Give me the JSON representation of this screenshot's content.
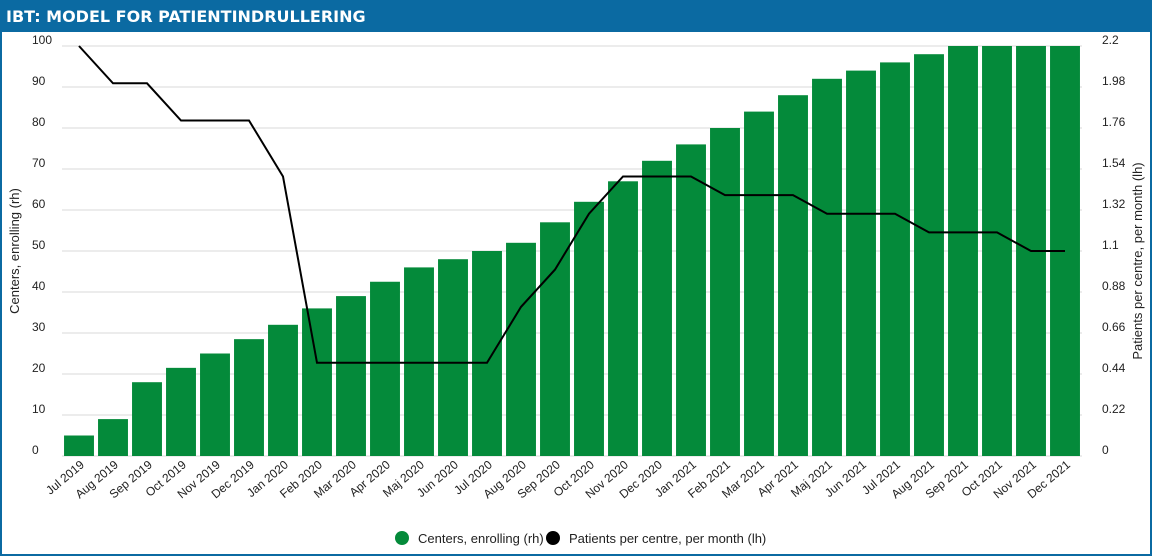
{
  "header": {
    "title": "IBT: MODEL FOR PATIENTINDRULLERING"
  },
  "colors": {
    "header": "#0b6aa2",
    "bars": "#048a3a",
    "line": "#000000",
    "grid": "#d9d9d9"
  },
  "chart_data": {
    "type": "bar",
    "categories": [
      "Jul 2019",
      "Aug 2019",
      "Sep 2019",
      "Oct 2019",
      "Nov 2019",
      "Dec 2019",
      "Jan 2020",
      "Feb 2020",
      "Mar 2020",
      "Apr 2020",
      "Maj 2020",
      "Jun 2020",
      "Jul 2020",
      "Aug 2020",
      "Sep 2020",
      "Oct 2020",
      "Nov 2020",
      "Dec 2020",
      "Jan 2021",
      "Feb 2021",
      "Mar 2021",
      "Apr 2021",
      "Maj 2021",
      "Jun 2021",
      "Jul 2021",
      "Aug 2021",
      "Sep 2021",
      "Oct 2021",
      "Nov 2021",
      "Dec 2021"
    ],
    "series": [
      {
        "name": "Centers, enrolling (rh)",
        "type": "bar",
        "axis": "left",
        "values": [
          5,
          9,
          18,
          21.5,
          25,
          28.5,
          32,
          36,
          39,
          42.5,
          46,
          48,
          50,
          52,
          57,
          62,
          67,
          72,
          76,
          80,
          84,
          88,
          92,
          94,
          96,
          98,
          100,
          100,
          100,
          100
        ]
      },
      {
        "name": "Patients per centre, per month (lh)",
        "type": "line",
        "axis": "right",
        "values": [
          2.2,
          2.0,
          2.0,
          1.8,
          1.8,
          1.8,
          1.5,
          0.5,
          0.5,
          0.5,
          0.5,
          0.5,
          0.5,
          0.8,
          1.0,
          1.3,
          1.5,
          1.5,
          1.5,
          1.4,
          1.4,
          1.4,
          1.3,
          1.3,
          1.3,
          1.2,
          1.2,
          1.2,
          1.1,
          1.1
        ]
      }
    ],
    "ylabel": "Centers, enrolling (rh)",
    "ylabel_right": "Patients per centre, per month (lh)",
    "yticks": [
      "0",
      "10",
      "20",
      "30",
      "40",
      "50",
      "60",
      "70",
      "80",
      "90",
      "100"
    ],
    "yticks_right": [
      "0",
      "0.22",
      "0.44",
      "0.66",
      "0.88",
      "1.1",
      "1.32",
      "1.54",
      "1.76",
      "1.98",
      "2.2"
    ],
    "ylim": [
      0,
      100
    ],
    "ylim_right": [
      0,
      2.2
    ],
    "grid": true,
    "legend_position": "bottom"
  },
  "legend": [
    {
      "label": "Centers, enrolling (rh)",
      "color": "#048a3a"
    },
    {
      "label": "Patients per centre, per month (lh)",
      "color": "#000000"
    }
  ]
}
